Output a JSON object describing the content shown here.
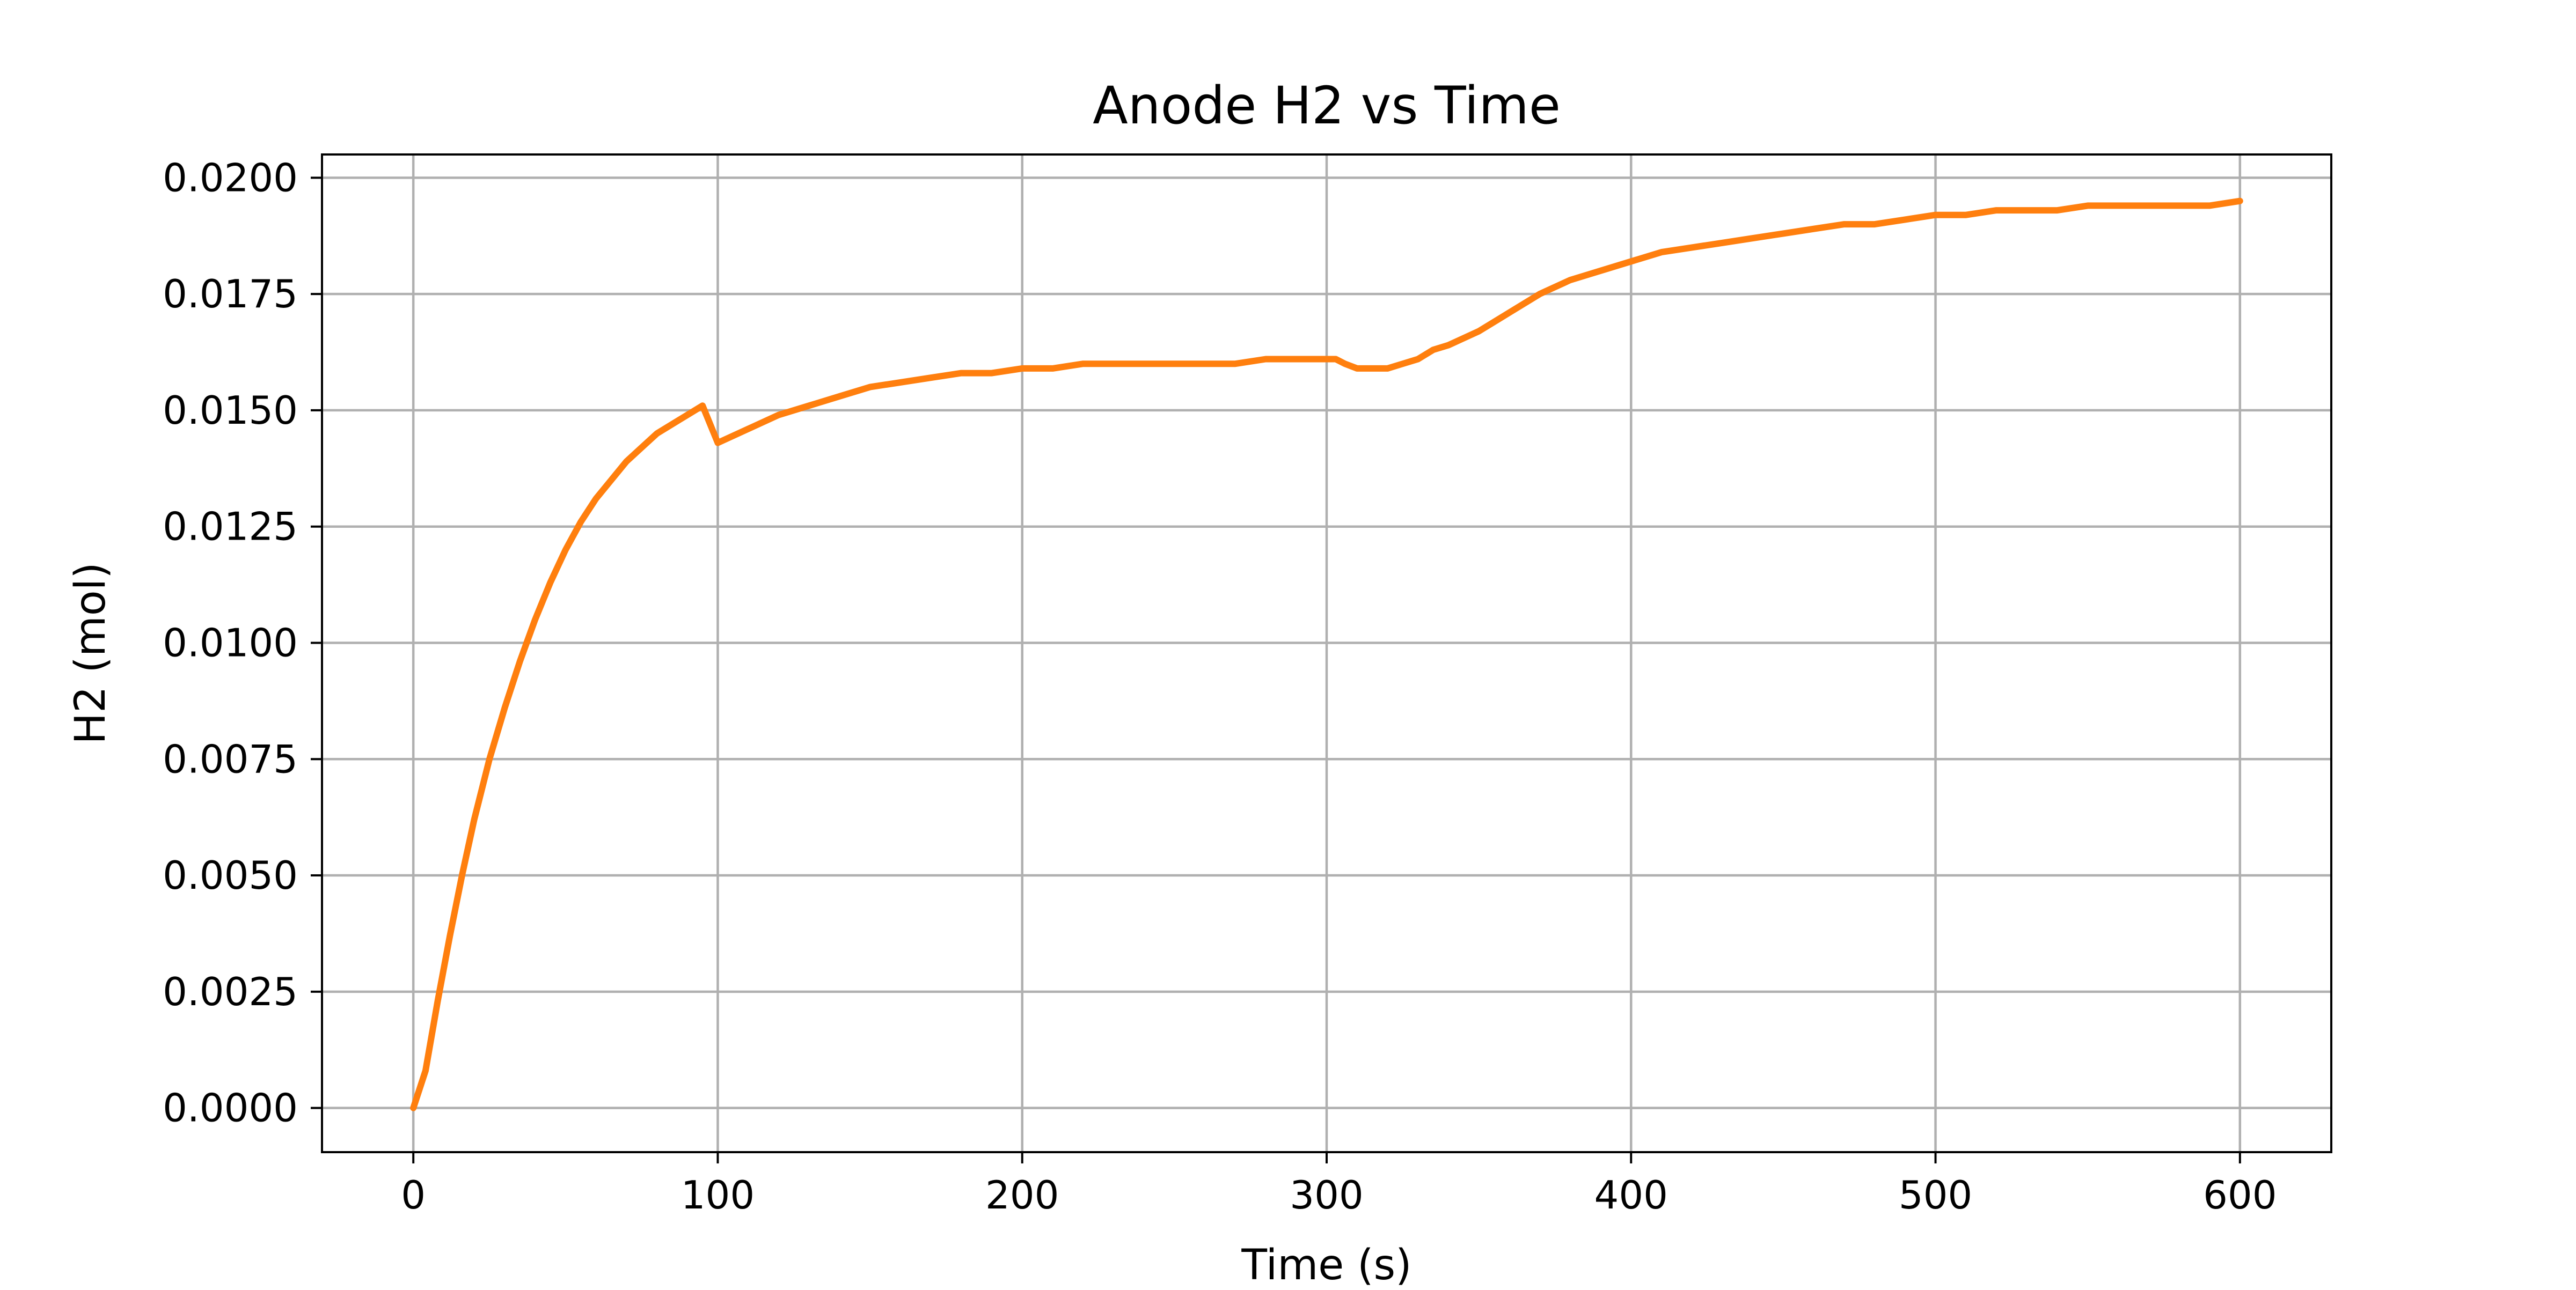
{
  "chart_data": {
    "type": "line",
    "title": "Anode H2 vs Time",
    "xlabel": "Time (s)",
    "ylabel": "H2 (mol)",
    "xlim": [
      -30,
      630
    ],
    "ylim": [
      -0.00095,
      0.0205
    ],
    "xticks": [
      0,
      100,
      200,
      300,
      400,
      500,
      600
    ],
    "xtick_labels": [
      "0",
      "100",
      "200",
      "300",
      "400",
      "500",
      "600"
    ],
    "yticks": [
      0,
      0.0025,
      0.005,
      0.0075,
      0.01,
      0.0125,
      0.015,
      0.0175,
      0.02
    ],
    "ytick_labels": [
      "0.0000",
      "0.0025",
      "0.0050",
      "0.0075",
      "0.0100",
      "0.0125",
      "0.0150",
      "0.0175",
      "0.0200"
    ],
    "grid": true,
    "series": [
      {
        "color": "#ff7f0e",
        "x": [
          0,
          4,
          8,
          12,
          16,
          20,
          25,
          30,
          35,
          40,
          45,
          50,
          55,
          60,
          65,
          70,
          75,
          80,
          85,
          90,
          95,
          100,
          110,
          120,
          130,
          140,
          150,
          160,
          170,
          180,
          190,
          200,
          210,
          220,
          230,
          240,
          250,
          260,
          270,
          280,
          290,
          300,
          303,
          306,
          310,
          315,
          320,
          325,
          330,
          335,
          340,
          350,
          360,
          370,
          380,
          390,
          400,
          410,
          420,
          430,
          440,
          450,
          460,
          470,
          480,
          490,
          500,
          510,
          520,
          530,
          540,
          550,
          560,
          570,
          580,
          590,
          600
        ],
        "y": [
          0,
          0.0008,
          0.0023,
          0.0037,
          0.005,
          0.0062,
          0.0075,
          0.0086,
          0.0096,
          0.0105,
          0.0113,
          0.012,
          0.0126,
          0.0131,
          0.0135,
          0.0139,
          0.0142,
          0.0145,
          0.0147,
          0.0149,
          0.0151,
          0.0143,
          0.0146,
          0.0149,
          0.0151,
          0.0153,
          0.0155,
          0.0156,
          0.0157,
          0.0158,
          0.0158,
          0.0159,
          0.0159,
          0.016,
          0.016,
          0.016,
          0.016,
          0.016,
          0.016,
          0.0161,
          0.0161,
          0.0161,
          0.0161,
          0.016,
          0.0159,
          0.0159,
          0.0159,
          0.016,
          0.0161,
          0.0163,
          0.0164,
          0.0167,
          0.0171,
          0.0175,
          0.0178,
          0.018,
          0.0182,
          0.0184,
          0.0185,
          0.0186,
          0.0187,
          0.0188,
          0.0189,
          0.019,
          0.019,
          0.0191,
          0.0192,
          0.0192,
          0.0193,
          0.0193,
          0.0193,
          0.0194,
          0.0194,
          0.0194,
          0.0194,
          0.0194,
          0.0195
        ]
      }
    ]
  }
}
